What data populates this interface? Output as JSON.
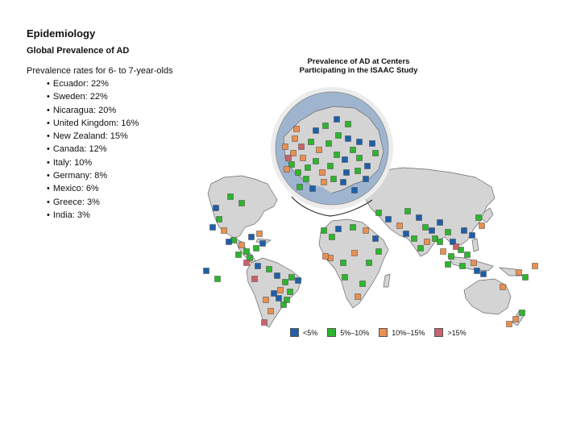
{
  "heading": "Epidemiology",
  "subheading": "Global Prevalence of AD",
  "intro": "Prevalence rates for 6- to 7-year-olds",
  "rates": [
    "Ecuador: 22%",
    "Sweden: 22%",
    "Nicaragua: 20%",
    "United Kingdom: 16%",
    "New Zealand: 15%",
    "Canada: 12%",
    "Italy: 10%",
    "Germany: 8%",
    "Mexico: 6%",
    "Greece: 3%",
    "India: 3%"
  ],
  "map": {
    "title_line1": "Prevalence of AD at Centers",
    "title_line2": "Participating in the ISAAC Study",
    "land_color": "#d4d4d4",
    "sea_inset_color": "#9fb5cf",
    "legend": [
      {
        "label": "<5%",
        "color": "#1f5fa8"
      },
      {
        "label": "5%–10%",
        "color": "#2db52d"
      },
      {
        "label": "10%–15%",
        "color": "#e99050"
      },
      {
        "label": ">15%",
        "color": "#c9636b"
      }
    ]
  }
}
